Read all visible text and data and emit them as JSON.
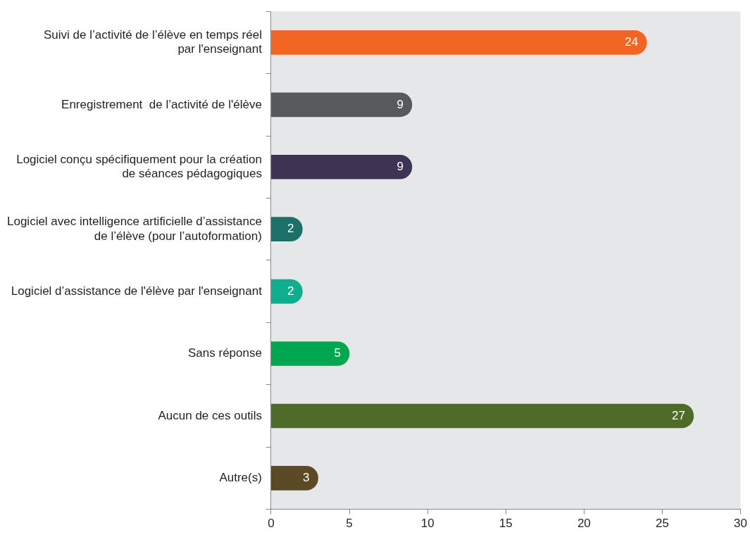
{
  "chart_data": {
    "type": "bar",
    "orientation": "horizontal",
    "categories": [
      "Suivi de l’activité de l’élève en temps réel\npar l'enseignant",
      "Enregistrement  de l’activité de l'élève",
      "Logiciel conçu spécifiquement pour la création\nde séances pédagogiques",
      "Logiciel avec intelligence artificielle d’assistance\nde l’élève (pour l’autoformation)",
      "Logiciel d’assistance de l'élève par l'enseignant",
      "Sans réponse",
      "Aucun de ces outils",
      "Autre(s)"
    ],
    "values": [
      24,
      9,
      9,
      2,
      2,
      5,
      27,
      3
    ],
    "colors": [
      "#f26522",
      "#58595b",
      "#3f3354",
      "#1b7068",
      "#0fae8f",
      "#00a650",
      "#4f6b29",
      "#5b4a25"
    ],
    "xlim": [
      0,
      30
    ],
    "xticks": [
      0,
      5,
      10,
      15,
      20,
      25,
      30
    ],
    "data_labels": true,
    "grid": false,
    "legend": false
  }
}
